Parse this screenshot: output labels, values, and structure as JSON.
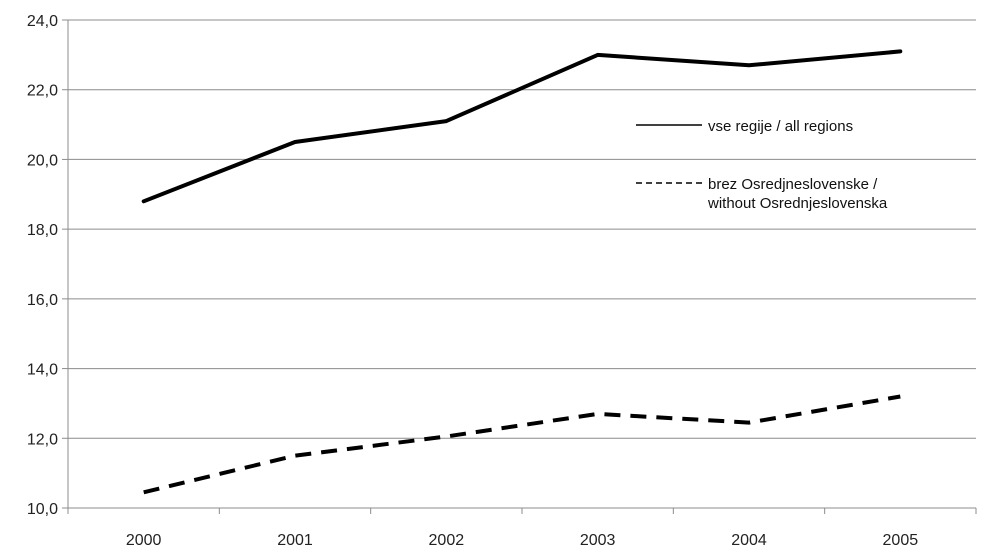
{
  "chart_data": {
    "type": "line",
    "categories": [
      "2000",
      "2001",
      "2002",
      "2003",
      "2004",
      "2005"
    ],
    "y_tick_labels": [
      "10,0",
      "12,0",
      "14,0",
      "16,0",
      "18,0",
      "20,0",
      "22,0",
      "24,0"
    ],
    "ylim": [
      10,
      24
    ],
    "y_step": 2,
    "grid": true,
    "legend_position": "right",
    "series": [
      {
        "name": "vse regije / all regions",
        "values": [
          18.8,
          20.5,
          21.1,
          23.0,
          22.7,
          23.1
        ],
        "style": "solid",
        "color": "#000000"
      },
      {
        "name_lines": [
          "brez Osredjneslovenske /",
          "without Osrednjeslovenska"
        ],
        "values": [
          10.45,
          11.5,
          12.05,
          12.7,
          12.45,
          13.2
        ],
        "style": "dashed",
        "color": "#000000"
      }
    ]
  }
}
